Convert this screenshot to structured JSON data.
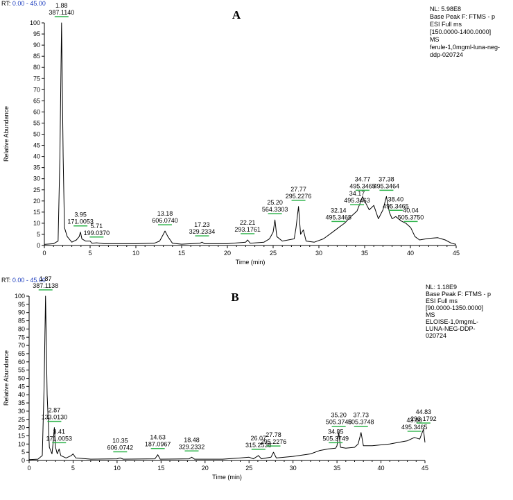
{
  "panels": [
    {
      "id": "A",
      "letter": "A",
      "rt_prefix": "RT:",
      "rt_range": "0.00 - 45.00",
      "info": [
        "NL: 5.98E8",
        "Base Peak F: FTMS - p",
        "ESI Full ms",
        "[150.0000-1400.0000]",
        "MS",
        "ferule-1,0mgml-luna-neg-",
        "ddp-020724"
      ],
      "ylabel": "Relative Abundance",
      "xlabel": "Time (min)"
    },
    {
      "id": "B",
      "letter": "B",
      "rt_prefix": "RT:",
      "rt_range": "0.00 - 45.00",
      "info": [
        "NL: 1.18E9",
        "Base Peak F: FTMS - p",
        "ESI Full ms",
        "[90.0000-1350.0000]",
        "MS",
        "ELOISE-1,0mgmL-",
        "LUNA-NEG-DDP-",
        "020724"
      ],
      "ylabel": "Relative Abundance",
      "xlabel": "Time (min)"
    }
  ],
  "chart_data": [
    {
      "type": "line",
      "title": "A",
      "xlabel": "Time (min)",
      "ylabel": "Relative Abundance",
      "xlim": [
        0,
        45
      ],
      "ylim": [
        0,
        100
      ],
      "xticks": [
        0,
        5,
        10,
        15,
        20,
        25,
        30,
        35,
        40,
        45
      ],
      "yticks": [
        0,
        5,
        10,
        15,
        20,
        25,
        30,
        35,
        40,
        45,
        50,
        55,
        60,
        65,
        70,
        75,
        80,
        85,
        90,
        95,
        100
      ],
      "peaks": [
        {
          "rt": "1.88",
          "mz": "387.1140",
          "x": 1.88,
          "y": 100
        },
        {
          "rt": "3.95",
          "mz": "171.0053",
          "x": 3.95,
          "y": 6
        },
        {
          "rt": "5.71",
          "mz": "199.0370",
          "x": 5.71,
          "y": 1
        },
        {
          "rt": "13.18",
          "mz": "606.0740",
          "x": 13.18,
          "y": 6.5
        },
        {
          "rt": "17.23",
          "mz": "329.2334",
          "x": 17.23,
          "y": 1.5
        },
        {
          "rt": "22.21",
          "mz": "293.1761",
          "x": 22.21,
          "y": 2.5
        },
        {
          "rt": "25.20",
          "mz": "564.3303",
          "x": 25.2,
          "y": 11.5
        },
        {
          "rt": "27.77",
          "mz": "295.2276",
          "x": 27.77,
          "y": 17.5
        },
        {
          "rt": "32.14",
          "mz": "495.3465",
          "x": 32.14,
          "y": 8
        },
        {
          "rt": "34.17",
          "mz": "495.3463",
          "x": 34.17,
          "y": 15.5
        },
        {
          "rt": "34.77",
          "mz": "495.3465",
          "x": 34.77,
          "y": 22
        },
        {
          "rt": "37.38",
          "mz": "495.3464",
          "x": 37.38,
          "y": 22
        },
        {
          "rt": "38.40",
          "mz": "495.3465",
          "x": 38.4,
          "y": 13
        },
        {
          "rt": "40.04",
          "mz": "505.3750",
          "x": 40.04,
          "y": 8
        }
      ],
      "trace": [
        [
          0,
          0.5
        ],
        [
          1.0,
          0.8
        ],
        [
          1.5,
          2
        ],
        [
          1.7,
          40
        ],
        [
          1.88,
          100
        ],
        [
          2.05,
          40
        ],
        [
          2.2,
          8
        ],
        [
          2.5,
          4
        ],
        [
          3.0,
          1.5
        ],
        [
          3.5,
          2.5
        ],
        [
          3.8,
          4
        ],
        [
          3.95,
          6
        ],
        [
          4.1,
          3
        ],
        [
          4.5,
          2
        ],
        [
          5.0,
          2
        ],
        [
          5.2,
          1
        ],
        [
          5.71,
          1.2
        ],
        [
          6.5,
          0.8
        ],
        [
          8,
          0.8
        ],
        [
          10,
          0.8
        ],
        [
          12,
          1
        ],
        [
          12.6,
          2
        ],
        [
          13.0,
          5
        ],
        [
          13.18,
          6.5
        ],
        [
          13.5,
          4
        ],
        [
          14,
          1
        ],
        [
          15,
          0.6
        ],
        [
          17,
          1
        ],
        [
          17.23,
          1.5
        ],
        [
          17.5,
          0.8
        ],
        [
          20,
          0.8
        ],
        [
          22,
          1.5
        ],
        [
          22.21,
          2.5
        ],
        [
          22.5,
          1
        ],
        [
          24,
          1.5
        ],
        [
          24.6,
          3
        ],
        [
          25.0,
          6
        ],
        [
          25.2,
          11.5
        ],
        [
          25.4,
          4
        ],
        [
          26,
          2
        ],
        [
          27.3,
          3
        ],
        [
          27.5,
          8
        ],
        [
          27.77,
          17.5
        ],
        [
          28.0,
          5
        ],
        [
          28.3,
          7
        ],
        [
          28.6,
          2
        ],
        [
          29.5,
          1.5
        ],
        [
          30.5,
          3
        ],
        [
          31.5,
          6
        ],
        [
          32.14,
          8
        ],
        [
          32.8,
          10
        ],
        [
          33.5,
          13
        ],
        [
          34.17,
          15.5
        ],
        [
          34.5,
          19
        ],
        [
          34.77,
          22
        ],
        [
          35.0,
          20
        ],
        [
          35.5,
          16
        ],
        [
          36,
          18
        ],
        [
          36.5,
          12
        ],
        [
          37.0,
          16
        ],
        [
          37.38,
          22
        ],
        [
          37.7,
          15
        ],
        [
          38.0,
          12
        ],
        [
          38.4,
          13
        ],
        [
          39.0,
          11
        ],
        [
          39.5,
          10
        ],
        [
          40.04,
          8
        ],
        [
          40.5,
          4
        ],
        [
          41,
          2.5
        ],
        [
          42,
          3.2
        ],
        [
          43,
          3.5
        ],
        [
          43.8,
          2.5
        ],
        [
          44.5,
          1
        ],
        [
          45,
          0.5
        ]
      ]
    },
    {
      "type": "line",
      "title": "B",
      "xlabel": "Time (min)",
      "ylabel": "Relative Abundance",
      "xlim": [
        0,
        45
      ],
      "ylim": [
        0,
        100
      ],
      "xticks": [
        0,
        5,
        10,
        15,
        20,
        25,
        30,
        35,
        40,
        45
      ],
      "yticks": [
        0,
        5,
        10,
        15,
        20,
        25,
        30,
        35,
        40,
        45,
        50,
        55,
        60,
        65,
        70,
        75,
        80,
        85,
        90,
        95,
        100
      ],
      "peaks": [
        {
          "rt": "1.87",
          "mz": "387.1138",
          "x": 1.87,
          "y": 100
        },
        {
          "rt": "2.87",
          "mz": "133.0130",
          "x": 2.87,
          "y": 20
        },
        {
          "rt": "3.41",
          "mz": "171.0053",
          "x": 3.41,
          "y": 7
        },
        {
          "rt": "10.35",
          "mz": "606.0742",
          "x": 10.35,
          "y": 1.5
        },
        {
          "rt": "14.63",
          "mz": "187.0967",
          "x": 14.63,
          "y": 3.5
        },
        {
          "rt": "18.48",
          "mz": "329.2332",
          "x": 18.48,
          "y": 2
        },
        {
          "rt": "26.07",
          "mz": "315.2538",
          "x": 26.07,
          "y": 3
        },
        {
          "rt": "27.78",
          "mz": "295.2276",
          "x": 27.78,
          "y": 5
        },
        {
          "rt": "34.85",
          "mz": "505.3749",
          "x": 34.85,
          "y": 7
        },
        {
          "rt": "35.20",
          "mz": "505.3748",
          "x": 35.2,
          "y": 17
        },
        {
          "rt": "37.73",
          "mz": "505.3748",
          "x": 37.73,
          "y": 17
        },
        {
          "rt": "43.80",
          "mz": "495.3465",
          "x": 43.8,
          "y": 14
        },
        {
          "rt": "44.83",
          "mz": "293.1792",
          "x": 44.83,
          "y": 19
        }
      ],
      "trace": [
        [
          0,
          0.5
        ],
        [
          1.0,
          0.8
        ],
        [
          1.5,
          3
        ],
        [
          1.7,
          45
        ],
        [
          1.87,
          100
        ],
        [
          2.05,
          40
        ],
        [
          2.3,
          8
        ],
        [
          2.6,
          4
        ],
        [
          2.75,
          12
        ],
        [
          2.87,
          20
        ],
        [
          3.0,
          8
        ],
        [
          3.2,
          4
        ],
        [
          3.41,
          7
        ],
        [
          3.6,
          3
        ],
        [
          4.2,
          1.5
        ],
        [
          4.8,
          3
        ],
        [
          5.0,
          4
        ],
        [
          5.3,
          1.5
        ],
        [
          7,
          0.8
        ],
        [
          10,
          1
        ],
        [
          10.35,
          1.5
        ],
        [
          10.7,
          0.8
        ],
        [
          14.3,
          1
        ],
        [
          14.63,
          3.5
        ],
        [
          14.9,
          0.8
        ],
        [
          18.2,
          1
        ],
        [
          18.48,
          2
        ],
        [
          18.8,
          0.8
        ],
        [
          22,
          0.8
        ],
        [
          24,
          1.5
        ],
        [
          25,
          2
        ],
        [
          25.5,
          1
        ],
        [
          26.07,
          3
        ],
        [
          26.4,
          1
        ],
        [
          27.5,
          2
        ],
        [
          27.78,
          5
        ],
        [
          28.1,
          1.5
        ],
        [
          30,
          2.5
        ],
        [
          32,
          4
        ],
        [
          33,
          6
        ],
        [
          34,
          7
        ],
        [
          34.85,
          7.5
        ],
        [
          35.0,
          9
        ],
        [
          35.2,
          17
        ],
        [
          35.4,
          8
        ],
        [
          36,
          7.5
        ],
        [
          37,
          8
        ],
        [
          37.4,
          10
        ],
        [
          37.73,
          17
        ],
        [
          38.0,
          9
        ],
        [
          39,
          9
        ],
        [
          40,
          9.5
        ],
        [
          41,
          10
        ],
        [
          42,
          11
        ],
        [
          43,
          12
        ],
        [
          43.8,
          14
        ],
        [
          44.4,
          13
        ],
        [
          44.83,
          19
        ],
        [
          45,
          11
        ]
      ]
    }
  ]
}
